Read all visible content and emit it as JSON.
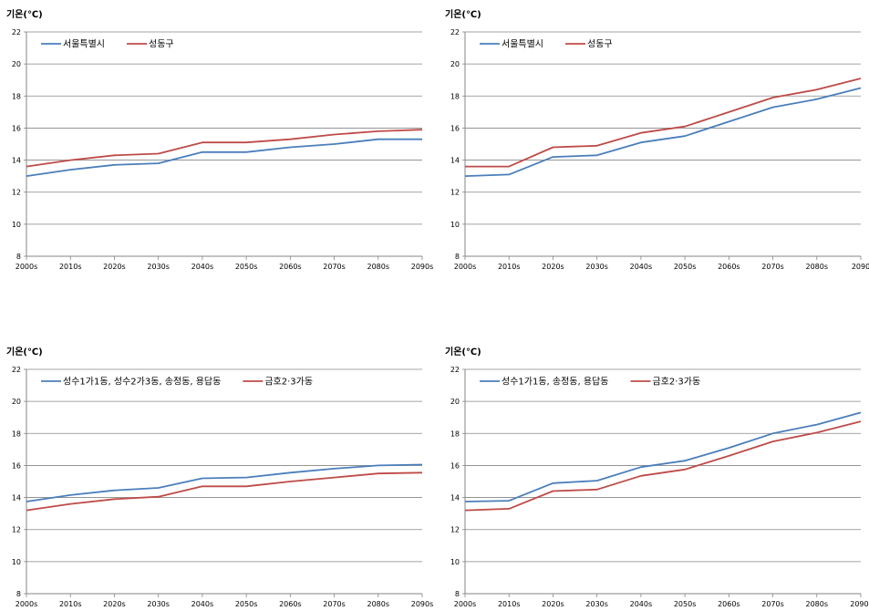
{
  "colors": {
    "series1": "#4A7EBB",
    "series2": "#BE4B48",
    "grid": "#868686",
    "axis": "#868686"
  },
  "chart_data": [
    {
      "type": "line",
      "ylabel": "기온(℃)",
      "ylim": [
        8,
        22
      ],
      "yticks": [
        "8",
        "10",
        "12",
        "14",
        "16",
        "18",
        "20",
        "22"
      ],
      "categories": [
        "2000s",
        "2010s",
        "2020s",
        "2030s",
        "2040s",
        "2050s",
        "2060s",
        "2070s",
        "2080s",
        "2090s"
      ],
      "grid": true,
      "legend": "top-left",
      "series": [
        {
          "name": "서울특별시",
          "values": [
            13.0,
            13.4,
            13.7,
            13.8,
            14.5,
            14.5,
            14.8,
            15.0,
            15.3,
            15.3
          ]
        },
        {
          "name": "성동구",
          "values": [
            13.6,
            14.0,
            14.3,
            14.4,
            15.1,
            15.1,
            15.3,
            15.6,
            15.8,
            15.9
          ]
        }
      ]
    },
    {
      "type": "line",
      "ylabel": "기온(℃)",
      "ylim": [
        8,
        22
      ],
      "yticks": [
        "8",
        "10",
        "12",
        "14",
        "16",
        "18",
        "20",
        "22"
      ],
      "categories": [
        "2000s",
        "2010s",
        "2020s",
        "2030s",
        "2040s",
        "2050s",
        "2060s",
        "2070s",
        "2080s",
        "2090"
      ],
      "grid": true,
      "legend": "top-left",
      "series": [
        {
          "name": "서울특별시",
          "values": [
            13.0,
            13.1,
            14.2,
            14.3,
            15.1,
            15.5,
            16.4,
            17.3,
            17.8,
            18.5
          ]
        },
        {
          "name": "성동구",
          "values": [
            13.6,
            13.6,
            14.8,
            14.9,
            15.7,
            16.1,
            17.0,
            17.9,
            18.4,
            19.1
          ]
        }
      ]
    },
    {
      "type": "line",
      "ylabel": "기온(℃)",
      "ylim": [
        8,
        22
      ],
      "yticks": [
        "8",
        "10",
        "12",
        "14",
        "16",
        "18",
        "20",
        "22"
      ],
      "categories": [
        "2000s",
        "2010s",
        "2020s",
        "2030s",
        "2040s",
        "2050s",
        "2060s",
        "2070s",
        "2080s",
        "2090s"
      ],
      "grid": true,
      "legend": "top-left",
      "series": [
        {
          "name": "성수1가1동, 성수2가3동, 송정동, 용답동",
          "values": [
            13.75,
            14.15,
            14.45,
            14.6,
            15.2,
            15.25,
            15.55,
            15.8,
            16.0,
            16.05
          ]
        },
        {
          "name": "금호2·3가동",
          "values": [
            13.2,
            13.6,
            13.9,
            14.05,
            14.7,
            14.7,
            15.0,
            15.25,
            15.5,
            15.55
          ]
        }
      ]
    },
    {
      "type": "line",
      "ylabel": "기온(℃)",
      "ylim": [
        8,
        22
      ],
      "yticks": [
        "8",
        "10",
        "12",
        "14",
        "16",
        "18",
        "20",
        "22"
      ],
      "categories": [
        "2000s",
        "2010s",
        "2020s",
        "2030s",
        "2040s",
        "2050s",
        "2060s",
        "2070s",
        "2080s",
        "2090("
      ],
      "grid": true,
      "legend": "top-left",
      "series": [
        {
          "name": "성수1가1동, 송정동, 용답동",
          "values": [
            13.75,
            13.8,
            14.9,
            15.05,
            15.9,
            16.3,
            17.1,
            18.0,
            18.55,
            19.3
          ]
        },
        {
          "name": "금호2·3가동",
          "values": [
            13.2,
            13.3,
            14.4,
            14.5,
            15.35,
            15.75,
            16.6,
            17.5,
            18.05,
            18.75
          ]
        }
      ]
    }
  ]
}
